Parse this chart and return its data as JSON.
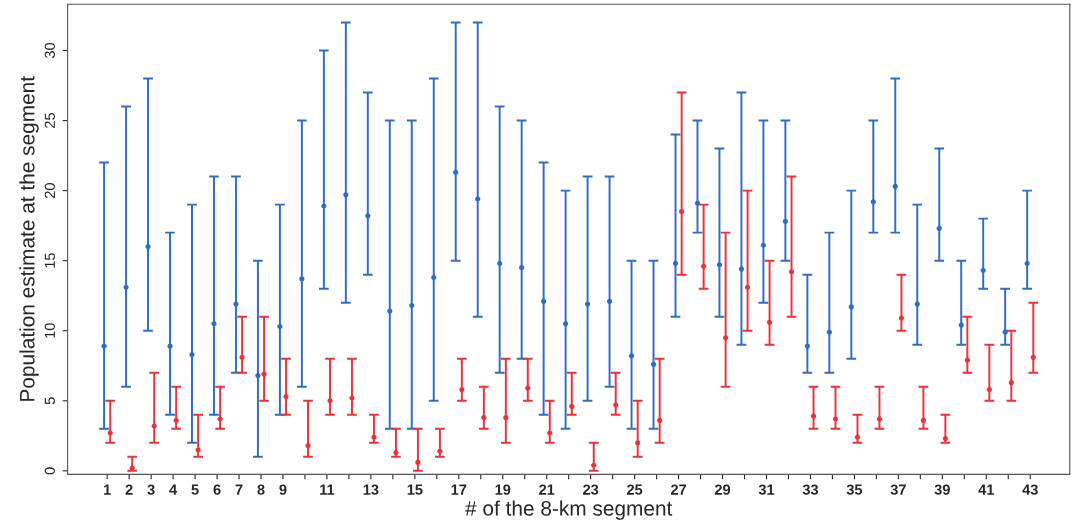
{
  "chart_data": {
    "type": "scatter",
    "xlabel": "# of the 8-km segment",
    "ylabel": "Population estimate at the segment",
    "categories": [
      "1",
      "2",
      "3",
      "4",
      "5",
      "6",
      "7",
      "8",
      "9",
      null,
      "11",
      null,
      "13",
      null,
      "15",
      null,
      "17",
      null,
      "19",
      null,
      "21",
      null,
      "23",
      null,
      "25",
      null,
      "27",
      null,
      "29",
      null,
      "31",
      null,
      "33",
      null,
      "35",
      null,
      "37",
      null,
      "39",
      null,
      "41",
      null,
      "43"
    ],
    "ylim": [
      -0.25,
      33.3
    ],
    "yticks": [
      0,
      5,
      10,
      15,
      20,
      25,
      30
    ],
    "grid": false,
    "legend": false,
    "marker": "circle",
    "series": [
      {
        "color": "#2f6cc4",
        "values": [
          8.9,
          13.1,
          16,
          8.9,
          8.3,
          10.5,
          11.9,
          6.8,
          10.3,
          13.7,
          18.9,
          19.7,
          18.2,
          11.4,
          11.8,
          13.8,
          21.3,
          19.4,
          14.8,
          14.5,
          12.1,
          10.5,
          11.9,
          12.1,
          8.2,
          7.6,
          14.8,
          19.1,
          14.7,
          14.4,
          16.1,
          17.8,
          8.9,
          9.9,
          11.7,
          19.2,
          20.3,
          11.9,
          17.3,
          10.4,
          14.3,
          9.9,
          14.8
        ],
        "errors": [
          [
            3,
            22
          ],
          [
            6,
            26
          ],
          [
            10,
            28
          ],
          [
            4,
            17
          ],
          [
            2,
            19
          ],
          [
            4,
            21
          ],
          [
            7,
            21
          ],
          [
            1,
            15
          ],
          [
            4,
            19
          ],
          [
            6,
            25
          ],
          [
            13,
            30
          ],
          [
            12,
            32
          ],
          [
            14,
            27
          ],
          [
            3,
            25
          ],
          [
            3,
            25
          ],
          [
            5,
            28
          ],
          [
            15,
            32
          ],
          [
            11,
            32
          ],
          [
            7,
            26
          ],
          [
            8,
            25
          ],
          [
            4,
            22
          ],
          [
            3,
            20
          ],
          [
            5,
            21
          ],
          [
            6,
            21
          ],
          [
            3,
            15
          ],
          [
            3,
            15
          ],
          [
            11,
            24
          ],
          [
            17,
            25
          ],
          [
            11,
            23
          ],
          [
            9,
            27
          ],
          [
            12,
            25
          ],
          [
            15,
            25
          ],
          [
            7,
            14
          ],
          [
            7,
            17
          ],
          [
            8,
            20
          ],
          [
            17,
            25
          ],
          [
            17,
            28
          ],
          [
            9,
            19
          ],
          [
            15,
            23
          ],
          [
            9,
            15
          ],
          [
            13,
            18
          ],
          [
            9,
            13
          ],
          [
            13,
            20
          ]
        ]
      },
      {
        "color": "#e8333b",
        "values": [
          2.7,
          0.2,
          3.2,
          3.6,
          1.5,
          3.7,
          8.1,
          6.9,
          5.3,
          1.8,
          5.0,
          5.2,
          2.4,
          1.3,
          0.6,
          1.4,
          5.8,
          3.8,
          3.8,
          5.9,
          2.7,
          4.6,
          0.4,
          4.7,
          2.0,
          3.6,
          18.5,
          14.6,
          9.5,
          13.1,
          10.6,
          14.2,
          3.9,
          3.7,
          2.4,
          3.7,
          10.9,
          3.6,
          2.3,
          7.9,
          5.8,
          6.3,
          8.1
        ],
        "errors": [
          [
            2,
            5
          ],
          [
            0,
            1
          ],
          [
            2,
            7
          ],
          [
            3,
            6
          ],
          [
            1,
            4
          ],
          [
            3,
            6
          ],
          [
            7,
            11
          ],
          [
            5,
            11
          ],
          [
            4,
            8
          ],
          [
            1,
            5
          ],
          [
            4,
            8
          ],
          [
            4,
            8
          ],
          [
            2,
            4
          ],
          [
            1,
            3
          ],
          [
            0,
            3
          ],
          [
            1,
            3
          ],
          [
            5,
            8
          ],
          [
            3,
            6
          ],
          [
            2,
            8
          ],
          [
            5,
            8
          ],
          [
            2,
            5
          ],
          [
            4,
            7
          ],
          [
            0,
            2
          ],
          [
            4,
            7
          ],
          [
            1,
            5
          ],
          [
            2,
            8
          ],
          [
            14,
            27
          ],
          [
            13,
            19
          ],
          [
            6,
            17
          ],
          [
            10,
            20
          ],
          [
            9,
            15
          ],
          [
            11,
            21
          ],
          [
            3,
            6
          ],
          [
            3,
            6
          ],
          [
            2,
            4
          ],
          [
            3,
            6
          ],
          [
            10,
            14
          ],
          [
            3,
            6
          ],
          [
            2,
            4
          ],
          [
            7,
            11
          ],
          [
            5,
            9
          ],
          [
            5,
            10
          ],
          [
            7,
            12
          ]
        ]
      }
    ]
  }
}
